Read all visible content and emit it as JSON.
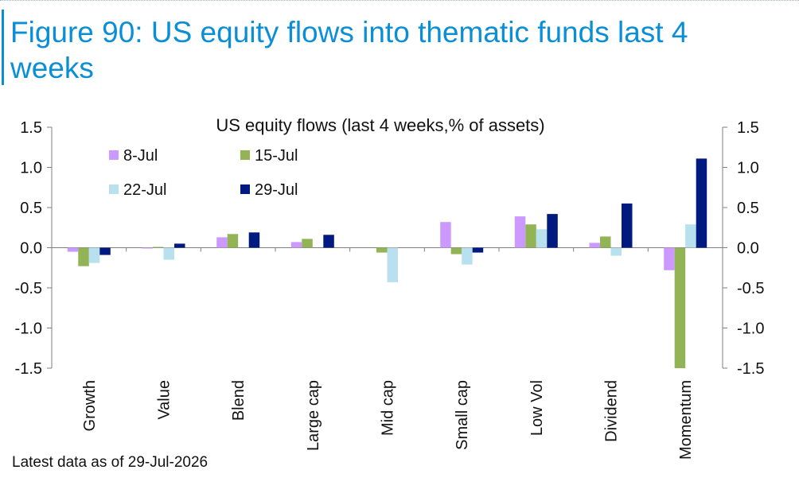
{
  "figure": {
    "title": "Figure 90: US equity flows into thematic funds last 4 weeks",
    "source": "Latest data as of 29-Jul-2026"
  },
  "colors": {
    "title_blue": "#0a8fd6",
    "axis": "#7f7f7f"
  },
  "chart_data": {
    "type": "bar",
    "title": "US equity flows (last 4 weeks,% of assets)",
    "xlabel": "",
    "ylabel": "",
    "ylim": [
      -1.5,
      1.5
    ],
    "secondary_ylim": [
      -1.5,
      1.5
    ],
    "yticks": [
      "1.5",
      "1.0",
      "0.5",
      "0.0",
      "-0.5",
      "-1.0",
      "-1.5"
    ],
    "grid": false,
    "legend_position": "top-left",
    "categories": [
      "Growth",
      "Value",
      "Blend",
      "Large cap",
      "Mid cap",
      "Small cap",
      "Low Vol",
      "Dividend",
      "Momentum"
    ],
    "series": [
      {
        "name": "8-Jul",
        "color": "#cc99ff",
        "values": [
          -0.05,
          -0.01,
          0.13,
          0.07,
          0.0,
          0.32,
          0.39,
          0.06,
          -0.28
        ]
      },
      {
        "name": "15-Jul",
        "color": "#92b356",
        "values": [
          -0.23,
          0.01,
          0.17,
          0.11,
          -0.06,
          -0.08,
          0.29,
          0.14,
          -1.5
        ]
      },
      {
        "name": "22-Jul",
        "color": "#b8e0ee",
        "values": [
          -0.19,
          -0.15,
          0.0,
          0.0,
          -0.43,
          -0.21,
          0.23,
          -0.1,
          0.29
        ]
      },
      {
        "name": "29-Jul",
        "color": "#001a80",
        "values": [
          -0.09,
          0.05,
          0.19,
          0.16,
          0.0,
          -0.06,
          0.42,
          0.55,
          1.11
        ]
      }
    ]
  }
}
